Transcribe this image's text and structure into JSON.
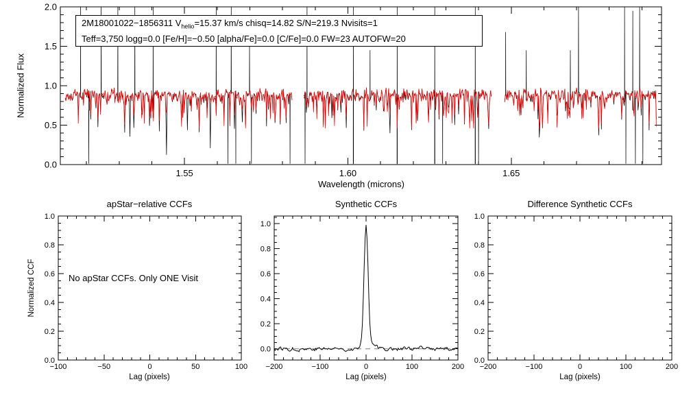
{
  "top_panel": {
    "ylabel": "Normalized Flux",
    "xlabel": "Wavelength (microns)",
    "annotation": {
      "line1_prefix": "2M18001022−1856311  V",
      "line1_sub": "helio",
      "line1_suffix": "=15.37 km/s  chisq=14.82  S/N=219.3  Nvisits=1",
      "line2": "Teff=3,750 logg=0.0 [Fe/H]=−0.50 [alpha/Fe]=0.0 [C/Fe]=0.0 FW=23 AUTOFW=20"
    }
  },
  "bottom_panels": {
    "shared_xlabel": "Lag (pixels)",
    "ylabel": "Normalized CCF"
  },
  "chart_data": [
    {
      "id": "spectrum",
      "type": "line",
      "title": "",
      "xlabel": "Wavelength (microns)",
      "ylabel": "Normalized Flux",
      "xlim": [
        1.512,
        1.696
      ],
      "ylim": [
        0.0,
        2.0
      ],
      "xticks": [
        1.55,
        1.6,
        1.65
      ],
      "xtick_labels": [
        "1.55",
        "1.60",
        "1.65"
      ],
      "yticks": [
        0.0,
        0.5,
        1.0,
        1.5,
        2.0
      ],
      "ytick_labels": [
        "0.0",
        "0.5",
        "1.0",
        "1.5",
        "2.0"
      ],
      "x_minor_step": 0.01,
      "y_minor_step": 0.1,
      "grid": false,
      "segments": [
        [
          1.5135,
          1.583
        ],
        [
          1.5865,
          1.644
        ],
        [
          1.648,
          1.6945
        ]
      ],
      "continuum_level": 0.93,
      "noise_amplitude": 0.05,
      "series": [
        {
          "name": "observed spectrum",
          "color": "#000000"
        },
        {
          "name": "best-fit synthetic spectrum",
          "color": "#ff0000"
        }
      ],
      "emission_spikes": [
        {
          "x": 1.5182,
          "y": 2.0
        },
        {
          "x": 1.5245,
          "y": 2.0
        },
        {
          "x": 1.5296,
          "y": 2.0
        },
        {
          "x": 1.5348,
          "y": 2.0
        },
        {
          "x": 1.5404,
          "y": 2.0
        },
        {
          "x": 1.5597,
          "y": 2.0
        },
        {
          "x": 1.5643,
          "y": 2.0
        },
        {
          "x": 1.5699,
          "y": 1.5
        },
        {
          "x": 1.5875,
          "y": 2.0
        },
        {
          "x": 1.6017,
          "y": 2.0
        },
        {
          "x": 1.6068,
          "y": 1.45
        },
        {
          "x": 1.6151,
          "y": 2.0
        },
        {
          "x": 1.6266,
          "y": 2.0
        },
        {
          "x": 1.639,
          "y": 2.0
        },
        {
          "x": 1.6483,
          "y": 1.68
        },
        {
          "x": 1.6546,
          "y": 1.45
        },
        {
          "x": 1.6681,
          "y": 1.45
        },
        {
          "x": 1.6706,
          "y": 2.0
        },
        {
          "x": 1.6847,
          "y": 2.0
        },
        {
          "x": 1.6872,
          "y": 1.95
        },
        {
          "x": 1.6893,
          "y": 2.0
        }
      ],
      "deep_absorption_lines": [
        1.5207,
        1.5633,
        1.5657,
        1.5705,
        1.5823,
        1.5869,
        1.6017,
        1.6151,
        1.6266,
        1.629,
        1.639,
        1.64,
        1.6851,
        1.688,
        1.6903
      ],
      "seed": 20180010
    },
    {
      "id": "apstar-ccf",
      "type": "line",
      "title": "apStar−relative CCFs",
      "xlabel": "Lag (pixels)",
      "ylabel": "Normalized CCF",
      "xlim": [
        -100,
        100
      ],
      "ylim": [
        0.0,
        1.0
      ],
      "xticks": [
        -100,
        -50,
        0,
        50,
        100
      ],
      "xtick_labels": [
        "−100",
        "−50",
        "0",
        "50",
        "100"
      ],
      "yticks": [
        0.0,
        0.2,
        0.4,
        0.6,
        0.8,
        1.0
      ],
      "ytick_labels": [
        "0.0",
        "0.2",
        "0.4",
        "0.6",
        "0.8",
        "1.0"
      ],
      "x_minor_step": 10,
      "y_minor_step": 0.05,
      "series": [],
      "message": "No apStar CCFs.  Only ONE Visit"
    },
    {
      "id": "synthetic-ccf",
      "type": "line",
      "title": "Synthetic CCFs",
      "xlabel": "Lag (pixels)",
      "xlim": [
        -200,
        200
      ],
      "ylim": [
        -0.09,
        1.06
      ],
      "xticks": [
        -200,
        -100,
        0,
        100,
        200
      ],
      "xtick_labels": [
        "−200",
        "−100",
        "0",
        "100",
        "200"
      ],
      "yticks": [
        0.0,
        0.2,
        0.4,
        0.6,
        0.8,
        1.0
      ],
      "ytick_labels": [
        "0.0",
        "0.2",
        "0.4",
        "0.6",
        "0.8",
        "1.0"
      ],
      "x_minor_step": 20,
      "y_minor_step": 0.05,
      "series": [
        {
          "name": "synthetic CCF",
          "color": "#000000"
        }
      ],
      "peak": {
        "center": 0,
        "height": 1.0,
        "sigma": 4.5
      },
      "secondary_bump": {
        "center": 16,
        "height": 0.05,
        "sigma": 6
      },
      "noise_amplitude": 0.03,
      "zero_line": {
        "y": 0.0,
        "color": "#999999",
        "dash": [
          7,
          6
        ]
      },
      "seed": 77
    },
    {
      "id": "difference-ccf",
      "type": "line",
      "title": "Difference Synthetic CCFs",
      "xlabel": "Lag (pixels)",
      "xlim": [
        -200,
        200
      ],
      "ylim": [
        0.0,
        1.0
      ],
      "xticks": [
        -200,
        -100,
        0,
        100,
        200
      ],
      "xtick_labels": [
        "−200",
        "−100",
        "0",
        "100",
        "200"
      ],
      "yticks": [
        0.0,
        0.2,
        0.4,
        0.6,
        0.8,
        1.0
      ],
      "ytick_labels": [
        "0.0",
        "0.2",
        "0.4",
        "0.6",
        "0.8",
        "1.0"
      ],
      "x_minor_step": 20,
      "y_minor_step": 0.05,
      "series": []
    }
  ]
}
